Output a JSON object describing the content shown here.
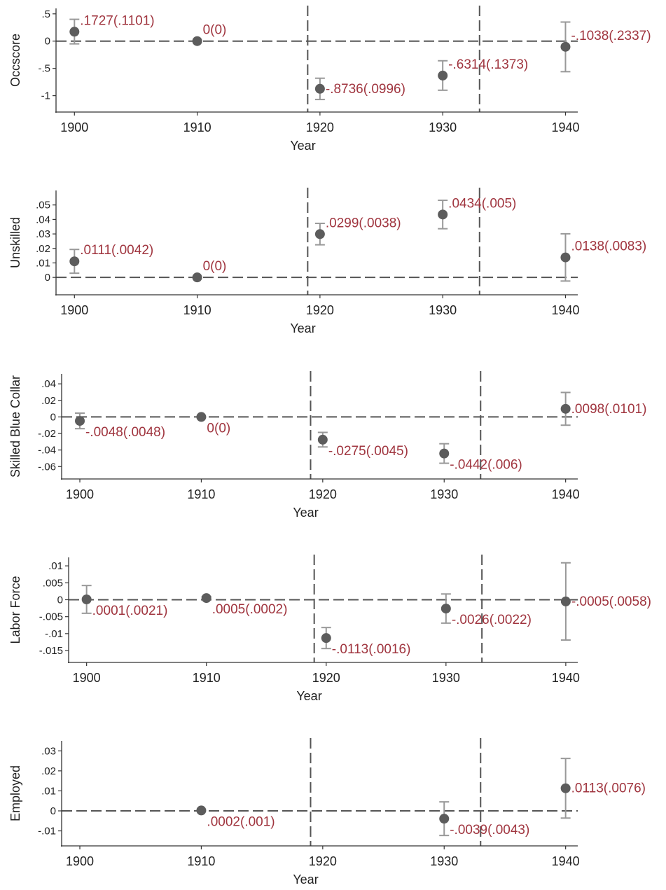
{
  "colors": {
    "point": "#5c5c5c",
    "label": "#a0353f",
    "axis": "#333333",
    "dashed": "#555555",
    "errorbar": "#999999"
  },
  "chart_data": [
    {
      "type": "scatter",
      "ylabel": "Occscore",
      "xlabel": "Year",
      "xticks": [
        1900,
        1910,
        1920,
        1930,
        1940
      ],
      "yticks": [
        0.5,
        0,
        -0.5,
        -1
      ],
      "ytick_labels": [
        ".5",
        "0",
        "-.5",
        "-1"
      ],
      "ylim": [
        -1.3,
        0.6
      ],
      "vlines": [
        1919,
        1933
      ],
      "hline": 0,
      "points": [
        {
          "x": 1900,
          "y": 0.1727,
          "lo": -0.05,
          "hi": 0.4,
          "label": ".1727(.1101)",
          "label_pos": "above-right"
        },
        {
          "x": 1910,
          "y": 0,
          "lo": 0,
          "hi": 0,
          "label": "0(0)",
          "label_pos": "above-right"
        },
        {
          "x": 1920,
          "y": -0.8736,
          "lo": -1.07,
          "hi": -0.68,
          "label": "-.8736(.0996)",
          "label_pos": "right"
        },
        {
          "x": 1930,
          "y": -0.6314,
          "lo": -0.9,
          "hi": -0.36,
          "label": "-.6314(.1373)",
          "label_pos": "above-right"
        },
        {
          "x": 1940,
          "y": -0.1038,
          "lo": -0.56,
          "hi": 0.35,
          "label": "-.1038(.2337)",
          "label_pos": "above-right"
        }
      ]
    },
    {
      "type": "scatter",
      "ylabel": "Unskilled",
      "xlabel": "Year",
      "xticks": [
        1900,
        1910,
        1920,
        1930,
        1940
      ],
      "yticks": [
        0.05,
        0.04,
        0.03,
        0.02,
        0.01,
        0
      ],
      "ytick_labels": [
        ".05",
        ".04",
        ".03",
        ".02",
        ".01",
        "0"
      ],
      "ylim": [
        -0.012,
        0.06
      ],
      "vlines": [
        1919,
        1933
      ],
      "hline": 0,
      "points": [
        {
          "x": 1900,
          "y": 0.0111,
          "lo": 0.0029,
          "hi": 0.0193,
          "label": ".0111(.0042)",
          "label_pos": "above-right"
        },
        {
          "x": 1910,
          "y": 0,
          "lo": 0,
          "hi": 0,
          "label": "0(0)",
          "label_pos": "above-right"
        },
        {
          "x": 1920,
          "y": 0.0299,
          "lo": 0.0225,
          "hi": 0.0373,
          "label": ".0299(.0038)",
          "label_pos": "above-right"
        },
        {
          "x": 1930,
          "y": 0.0434,
          "lo": 0.0336,
          "hi": 0.0532,
          "label": ".0434(.005)",
          "label_pos": "above-right"
        },
        {
          "x": 1940,
          "y": 0.0138,
          "lo": -0.0025,
          "hi": 0.0301,
          "label": ".0138(.0083)",
          "label_pos": "above-right"
        }
      ]
    },
    {
      "type": "scatter",
      "ylabel": "Skilled Blue Collar",
      "xlabel": "Year",
      "xticks": [
        1900,
        1910,
        1920,
        1930,
        1940
      ],
      "yticks": [
        0.04,
        0.02,
        0,
        -0.02,
        -0.04,
        -0.06
      ],
      "ytick_labels": [
        ".04",
        ".02",
        "0",
        "-.02",
        "-.04",
        "-.06"
      ],
      "ylim": [
        -0.075,
        0.052
      ],
      "vlines": [
        1919,
        1933
      ],
      "hline": 0,
      "points": [
        {
          "x": 1900,
          "y": -0.0048,
          "lo": -0.0142,
          "hi": 0.0046,
          "label": "-.0048(.0048)",
          "label_pos": "below-right"
        },
        {
          "x": 1910,
          "y": 0,
          "lo": 0,
          "hi": 0,
          "label": "0(0)",
          "label_pos": "below-right"
        },
        {
          "x": 1920,
          "y": -0.0275,
          "lo": -0.0363,
          "hi": -0.0187,
          "label": "-.0275(.0045)",
          "label_pos": "below-right"
        },
        {
          "x": 1930,
          "y": -0.0442,
          "lo": -0.056,
          "hi": -0.0324,
          "label": "-.0442(.006)",
          "label_pos": "below-right"
        },
        {
          "x": 1940,
          "y": 0.0098,
          "lo": -0.01,
          "hi": 0.0296,
          "label": ".0098(.0101)",
          "label_pos": "right"
        }
      ]
    },
    {
      "type": "scatter",
      "ylabel": "Labor Force",
      "xlabel": "Year",
      "xticks": [
        1900,
        1910,
        1920,
        1930,
        1940
      ],
      "yticks": [
        0.01,
        0.005,
        0,
        -0.005,
        -0.01,
        -0.015
      ],
      "ytick_labels": [
        ".01",
        ".005",
        "0",
        "-.005",
        "-.01",
        "-.015"
      ],
      "ylim": [
        -0.0185,
        0.0125
      ],
      "vlines": [
        1919,
        1933
      ],
      "hline": 0,
      "points": [
        {
          "x": 1900,
          "y": 0.0001,
          "lo": -0.004,
          "hi": 0.0042,
          "label": ".0001(.0021)",
          "label_pos": "below-right"
        },
        {
          "x": 1910,
          "y": 0.0005,
          "lo": 0.0001,
          "hi": 0.0009,
          "label": ".0005(.0002)",
          "label_pos": "below-right"
        },
        {
          "x": 1920,
          "y": -0.0113,
          "lo": -0.0144,
          "hi": -0.0082,
          "label": "-.0113(.0016)",
          "label_pos": "below-right"
        },
        {
          "x": 1930,
          "y": -0.0026,
          "lo": -0.0069,
          "hi": 0.0017,
          "label": "-.0026(.0022)",
          "label_pos": "below-right"
        },
        {
          "x": 1940,
          "y": -0.0005,
          "lo": -0.0119,
          "hi": 0.0109,
          "label": "-.0005(.0058)",
          "label_pos": "right"
        }
      ]
    },
    {
      "type": "scatter",
      "ylabel": "Employed",
      "xlabel": "Year",
      "xticks": [
        1900,
        1910,
        1920,
        1930,
        1940
      ],
      "yticks": [
        0.03,
        0.02,
        0.01,
        0,
        -0.01
      ],
      "ytick_labels": [
        ".03",
        ".02",
        ".01",
        "0",
        "-.01"
      ],
      "ylim": [
        -0.0175,
        0.035
      ],
      "vlines": [
        1919,
        1933
      ],
      "hline": 0,
      "points": [
        {
          "x": 1910,
          "y": 0.0002,
          "lo": 0.0002,
          "hi": 0.0002,
          "label": ".0002(.001)",
          "label_pos": "below-right"
        },
        {
          "x": 1930,
          "y": -0.0039,
          "lo": -0.0123,
          "hi": 0.0045,
          "label": "-.0039(.0043)",
          "label_pos": "below-right"
        },
        {
          "x": 1940,
          "y": 0.0113,
          "lo": -0.0036,
          "hi": 0.0262,
          "label": ".0113(.0076)",
          "label_pos": "right"
        }
      ]
    }
  ]
}
